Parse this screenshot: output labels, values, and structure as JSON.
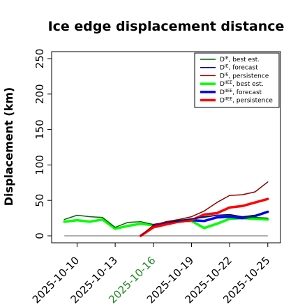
{
  "chart_data": {
    "type": "line",
    "title": "Ice edge displacement distance",
    "ylabel": "Displacement (km)",
    "xlabel": "",
    "ylim": [
      0,
      260
    ],
    "yticks": [
      0,
      50,
      100,
      150,
      200,
      250
    ],
    "xlim": [
      "2025-10-08",
      "2025-10-26"
    ],
    "xtick_labels": [
      {
        "date": "2025-10-10",
        "label": "2025-10-10",
        "color": "#000000"
      },
      {
        "date": "2025-10-13",
        "label": "2025-10-13",
        "color": "#000000"
      },
      {
        "date": "2025-10-16",
        "label": "2025-10-16",
        "color": "#228B22"
      },
      {
        "date": "2025-10-19",
        "label": "2025-10-19",
        "color": "#000000"
      },
      {
        "date": "2025-10-22",
        "label": "2025-10-22",
        "color": "#000000"
      },
      {
        "date": "2025-10-25",
        "label": "2025-10-25",
        "color": "#000000"
      }
    ],
    "grid": false,
    "legend_position": "top-right",
    "reference_line": {
      "y": 0,
      "from": "2025-10-09",
      "to": "2025-10-25",
      "color": "#808080"
    },
    "series": [
      {
        "name": "D^IE, best est.",
        "base": "D",
        "sup": "IE",
        "rest": ", best est.",
        "color": "#006400",
        "width": 1.5,
        "x": [
          "2025-10-09",
          "2025-10-10",
          "2025-10-11",
          "2025-10-12",
          "2025-10-13",
          "2025-10-14",
          "2025-10-15",
          "2025-10-16",
          "2025-10-17",
          "2025-10-18",
          "2025-10-19",
          "2025-10-20",
          "2025-10-21",
          "2025-10-22",
          "2025-10-23",
          "2025-10-24",
          "2025-10-25"
        ],
        "y": [
          23,
          29,
          27,
          26,
          12,
          19,
          20,
          16,
          19,
          22,
          24,
          26,
          29,
          29,
          27,
          26,
          25
        ]
      },
      {
        "name": "D^IE, forecast",
        "base": "D",
        "sup": "IE",
        "rest": ", forecast",
        "color": "#00008B",
        "width": 1.5,
        "x": [
          "2025-10-16",
          "2025-10-17",
          "2025-10-18",
          "2025-10-19",
          "2025-10-20",
          "2025-10-21",
          "2025-10-22",
          "2025-10-23",
          "2025-10-24",
          "2025-10-25"
        ],
        "y": [
          16,
          19,
          21,
          24,
          27,
          29,
          30,
          27,
          29,
          34
        ]
      },
      {
        "name": "D^IE, persistence",
        "base": "D",
        "sup": "IE",
        "rest": ", persistence",
        "color": "#8B0000",
        "width": 1.5,
        "x": [
          "2025-10-15",
          "2025-10-16",
          "2025-10-17",
          "2025-10-18",
          "2025-10-19",
          "2025-10-20",
          "2025-10-21",
          "2025-10-22",
          "2025-10-23",
          "2025-10-24",
          "2025-10-25"
        ],
        "y": [
          0,
          15,
          20,
          23,
          27,
          35,
          47,
          57,
          58,
          62,
          76
        ]
      },
      {
        "name": "D^IIEE, best est.",
        "base": "D",
        "sup": "IIEE",
        "rest": ", best est.",
        "color": "#00FF00",
        "width": 3.5,
        "x": [
          "2025-10-09",
          "2025-10-10",
          "2025-10-11",
          "2025-10-12",
          "2025-10-13",
          "2025-10-14",
          "2025-10-15",
          "2025-10-16",
          "2025-10-17",
          "2025-10-18",
          "2025-10-19",
          "2025-10-20",
          "2025-10-21",
          "2025-10-22",
          "2025-10-23",
          "2025-10-24",
          "2025-10-25"
        ],
        "y": [
          20,
          22,
          20,
          23,
          10,
          14,
          17,
          15,
          18,
          21,
          21,
          11,
          17,
          24,
          25,
          24,
          23
        ]
      },
      {
        "name": "D^IIEE, forecast",
        "base": "D",
        "sup": "IIEE",
        "rest": ", forecast",
        "color": "#0000FF",
        "width": 3.5,
        "x": [
          "2025-10-16",
          "2025-10-17",
          "2025-10-18",
          "2025-10-19",
          "2025-10-20",
          "2025-10-21",
          "2025-10-22",
          "2025-10-23",
          "2025-10-24",
          "2025-10-25"
        ],
        "y": [
          14,
          18,
          20,
          22,
          21,
          26,
          27,
          25,
          28,
          34
        ]
      },
      {
        "name": "D^IIEE, persistence",
        "base": "D",
        "sup": "IIEE",
        "rest": ", persistence",
        "color": "#FF0000",
        "width": 3.5,
        "x": [
          "2025-10-15",
          "2025-10-16",
          "2025-10-17",
          "2025-10-18",
          "2025-10-19",
          "2025-10-20",
          "2025-10-21",
          "2025-10-22",
          "2025-10-23",
          "2025-10-24",
          "2025-10-25"
        ],
        "y": [
          0,
          12,
          16,
          20,
          22,
          30,
          32,
          40,
          42,
          47,
          52
        ]
      }
    ]
  }
}
